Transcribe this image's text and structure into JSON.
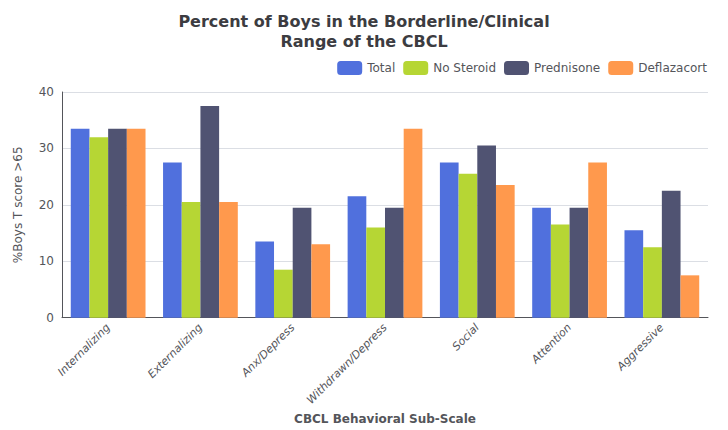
{
  "chart_data": {
    "type": "bar",
    "title": "Percent of Boys in the Borderline/Clinical\nRange of the CBCL",
    "xlabel": "CBCL Behavioral Sub-Scale",
    "ylabel": "%Boys T score >65",
    "categories": [
      "Internalizing",
      "Externalizing",
      "Anx/Depress",
      "Withdrawn/Depress",
      "Social",
      "Attention",
      "Aggressive"
    ],
    "series": [
      {
        "name": "Total",
        "values": [
          33.5,
          27.5,
          13.5,
          21.5,
          27.5,
          19.5,
          15.5
        ]
      },
      {
        "name": "No Steroid",
        "values": [
          32.0,
          20.5,
          8.5,
          16.0,
          25.5,
          16.5,
          12.5
        ]
      },
      {
        "name": "Prednisone",
        "values": [
          33.5,
          37.5,
          19.5,
          19.5,
          30.5,
          19.5,
          22.5
        ]
      },
      {
        "name": "Deflazacort",
        "values": [
          33.5,
          20.5,
          13.0,
          33.5,
          23.5,
          27.5,
          7.5
        ]
      }
    ],
    "ylim": [
      0,
      40
    ],
    "yticks": [
      0,
      10,
      20,
      30,
      40
    ],
    "grid": true,
    "legend": "upper right"
  }
}
